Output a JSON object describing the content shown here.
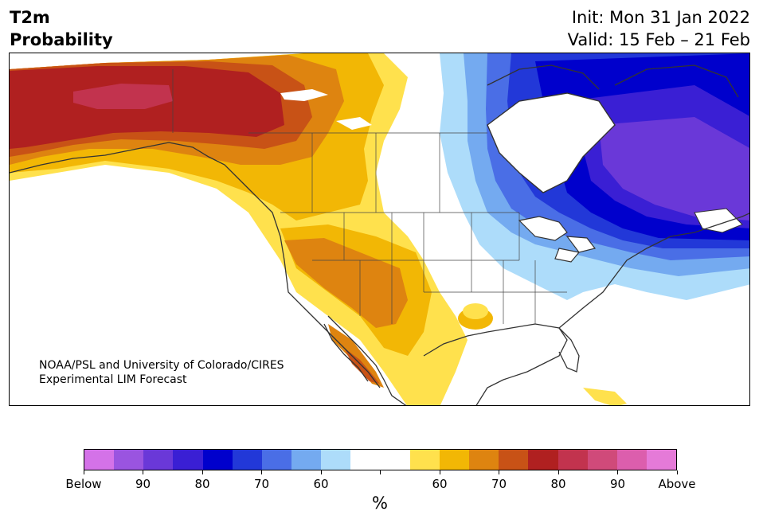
{
  "header": {
    "title_line1": "T2m",
    "title_line2": "Probability",
    "init": "Init: Mon 31 Jan 2022",
    "valid": "Valid: 15 Feb – 21 Feb"
  },
  "credit": {
    "line1": "NOAA/PSL and University of Colorado/CIRES",
    "line2": "Experimental LIM Forecast"
  },
  "colorbar": {
    "colors": [
      "#d472e8",
      "#9a54e0",
      "#6a38d8",
      "#3a1fd4",
      "#0000cc",
      "#2238d8",
      "#4a6ee6",
      "#74aaf0",
      "#addcfa",
      "#ffffff",
      "#ffffff",
      "#ffe14d",
      "#f2b705",
      "#de8410",
      "#c85216",
      "#b02020",
      "#c2334e",
      "#d04a7a",
      "#dc5ead",
      "#e57ad8"
    ],
    "labels": [
      "Below",
      "90",
      "80",
      "70",
      "60",
      "60",
      "70",
      "80",
      "90",
      "Above"
    ],
    "unit": "%"
  },
  "legend_colors": {
    "below": "#d472e8",
    "above": "#e57ad8",
    "cold": "#0000cc",
    "warm": "#b02020",
    "neutral": "#ffffff"
  }
}
